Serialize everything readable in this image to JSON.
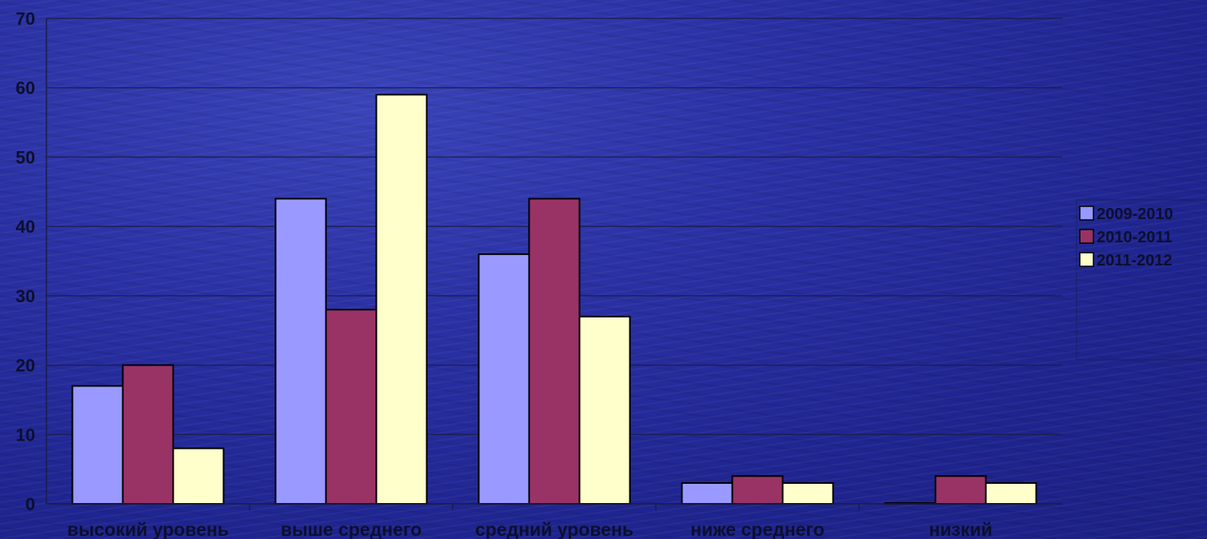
{
  "chart_data": {
    "type": "bar",
    "categories": [
      "высокий уровень",
      "выше среднего",
      "средний уровень",
      "ниже среднего",
      "низкий"
    ],
    "series": [
      {
        "name": "2009-2010",
        "values": [
          17,
          44,
          36,
          3,
          0
        ],
        "color": "#9999ff"
      },
      {
        "name": "2010-2011",
        "values": [
          20,
          28,
          44,
          4,
          4
        ],
        "color": "#993366"
      },
      {
        "name": "2011-2012",
        "values": [
          8,
          59,
          27,
          3,
          3
        ],
        "color": "#ffffcc"
      }
    ],
    "ylim": [
      0,
      70
    ],
    "yticks": [
      0,
      10,
      20,
      30,
      40,
      50,
      60,
      70
    ],
    "grid": true,
    "legend_position": "right"
  },
  "colors": {
    "background": "#1f2590",
    "gridline": "#1a1d4a",
    "bar_outline": "#000000",
    "text": "#0d0f2e"
  }
}
